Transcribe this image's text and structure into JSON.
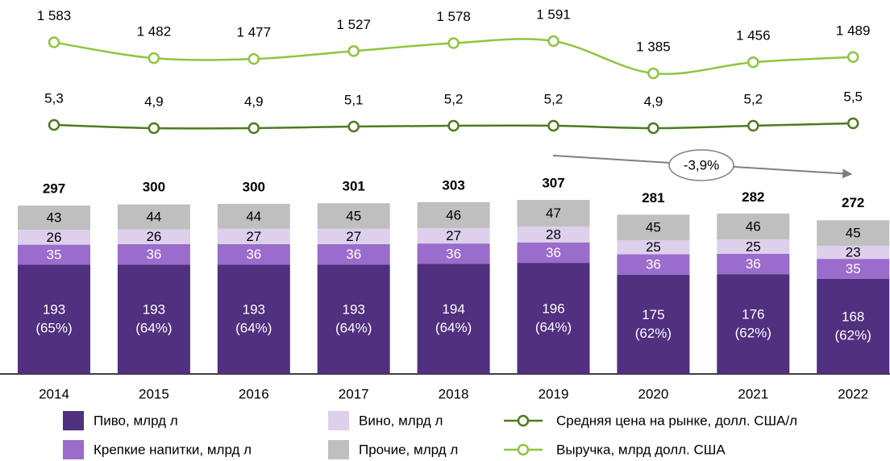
{
  "chart_data": {
    "type": "bar",
    "categories": [
      "2014",
      "2015",
      "2016",
      "2017",
      "2018",
      "2019",
      "2020",
      "2021",
      "2022"
    ],
    "totals": [
      297,
      300,
      300,
      301,
      303,
      307,
      281,
      282,
      272
    ],
    "series": [
      {
        "name": "Пиво, млрд л",
        "type": "bar",
        "color": "#51307f",
        "label_color": "#ffffff",
        "values": [
          193,
          193,
          193,
          193,
          194,
          196,
          175,
          176,
          168
        ],
        "shares": [
          65,
          64,
          64,
          64,
          64,
          64,
          62,
          62,
          62
        ],
        "share_labels": [
          "(65%)",
          "(64%)",
          "(64%)",
          "(64%)",
          "(64%)",
          "(64%)",
          "(62%)",
          "(62%)",
          "(62%)"
        ]
      },
      {
        "name": "Крепкие напитки, млрд л",
        "type": "bar",
        "color": "#9a6ccb",
        "label_color": "#ffffff",
        "values": [
          35,
          36,
          36,
          36,
          36,
          36,
          36,
          36,
          35
        ]
      },
      {
        "name": "Вино, млрд л",
        "type": "bar",
        "color": "#ddd0ec",
        "label_color": "#000000",
        "values": [
          26,
          26,
          27,
          27,
          27,
          28,
          25,
          25,
          23
        ]
      },
      {
        "name": "Прочие, млрд л",
        "type": "bar",
        "color": "#bfbfbf",
        "label_color": "#000000",
        "values": [
          43,
          44,
          44,
          45,
          46,
          47,
          45,
          46,
          45
        ]
      },
      {
        "name": "Средняя цена на рынке, долл. США/л",
        "type": "line",
        "color": "#4f7a1f",
        "values": [
          5.3,
          4.9,
          4.9,
          5.1,
          5.2,
          5.2,
          4.9,
          5.2,
          5.5
        ],
        "value_labels": [
          "5,3",
          "4,9",
          "4,9",
          "5,1",
          "5,2",
          "5,2",
          "4,9",
          "5,2",
          "5,5"
        ]
      },
      {
        "name": "Выручка, млрд долл. США",
        "type": "line",
        "color": "#8dc63f",
        "values": [
          1583,
          1482,
          1477,
          1527,
          1578,
          1591,
          1385,
          1456,
          1489
        ],
        "value_labels": [
          "1 583",
          "1 482",
          "1 477",
          "1 527",
          "1 578",
          "1 591",
          "1 385",
          "1 456",
          "1 489"
        ]
      }
    ],
    "annotation": "-3,9%"
  }
}
